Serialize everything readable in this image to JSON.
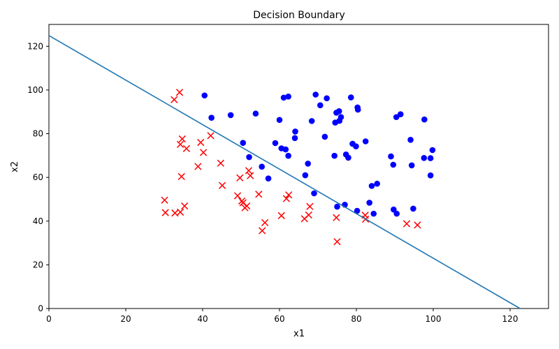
{
  "chart_data": {
    "type": "scatter",
    "title": "Decision Boundary",
    "xlabel": "x1",
    "ylabel": "x2",
    "xlim": [
      0,
      130
    ],
    "ylim": [
      0,
      130
    ],
    "xticks": [
      0,
      20,
      40,
      60,
      80,
      100,
      120
    ],
    "yticks": [
      0,
      20,
      40,
      60,
      80,
      100,
      120
    ],
    "grid": false,
    "series": [
      {
        "marker": "circle",
        "color": "#0000ff",
        "points": [
          [
            40.5,
            97.5
          ],
          [
            42.3,
            87.3
          ],
          [
            47.3,
            88.5
          ],
          [
            50.5,
            75.8
          ],
          [
            52.1,
            69.3
          ],
          [
            53.8,
            89.2
          ],
          [
            55.4,
            64.9
          ],
          [
            57.1,
            59.5
          ],
          [
            58.9,
            75.7
          ],
          [
            60.0,
            86.3
          ],
          [
            60.5,
            73.3
          ],
          [
            61.1,
            96.5
          ],
          [
            61.6,
            72.8
          ],
          [
            62.3,
            97.0
          ],
          [
            62.3,
            69.9
          ],
          [
            64.0,
            78.0
          ],
          [
            64.1,
            81.0
          ],
          [
            66.7,
            61.0
          ],
          [
            67.4,
            66.3
          ],
          [
            68.4,
            85.8
          ],
          [
            69.0,
            52.7
          ],
          [
            69.4,
            97.9
          ],
          [
            70.6,
            93.0
          ],
          [
            71.8,
            78.6
          ],
          [
            72.3,
            96.2
          ],
          [
            74.3,
            69.9
          ],
          [
            74.5,
            85.1
          ],
          [
            74.8,
            89.6
          ],
          [
            75.0,
            46.6
          ],
          [
            75.5,
            90.3
          ],
          [
            75.6,
            85.9
          ],
          [
            76.0,
            87.6
          ],
          [
            77.0,
            47.5
          ],
          [
            77.3,
            70.5
          ],
          [
            77.9,
            69.0
          ],
          [
            78.6,
            96.6
          ],
          [
            79.0,
            75.4
          ],
          [
            79.9,
            74.2
          ],
          [
            80.2,
            44.7
          ],
          [
            80.3,
            92.0
          ],
          [
            80.4,
            91.0
          ],
          [
            82.4,
            76.5
          ],
          [
            83.4,
            48.4
          ],
          [
            84.0,
            56.1
          ],
          [
            84.5,
            43.4
          ],
          [
            85.4,
            57.1
          ],
          [
            89.0,
            69.6
          ],
          [
            89.6,
            65.8
          ],
          [
            89.7,
            45.3
          ],
          [
            90.4,
            87.6
          ],
          [
            90.5,
            43.4
          ],
          [
            91.5,
            88.9
          ],
          [
            94.1,
            77.2
          ],
          [
            94.4,
            65.5
          ],
          [
            94.8,
            45.7
          ],
          [
            97.6,
            68.9
          ],
          [
            97.7,
            86.5
          ],
          [
            99.3,
            68.8
          ],
          [
            99.3,
            60.9
          ],
          [
            99.8,
            72.5
          ]
        ]
      },
      {
        "marker": "x",
        "color": "#ff0000",
        "points": [
          [
            30.1,
            49.6
          ],
          [
            30.3,
            43.9
          ],
          [
            32.6,
            95.6
          ],
          [
            32.8,
            43.7
          ],
          [
            34.0,
            98.9
          ],
          [
            34.2,
            44.1
          ],
          [
            34.2,
            75.1
          ],
          [
            34.5,
            60.4
          ],
          [
            34.7,
            77.6
          ],
          [
            35.3,
            46.9
          ],
          [
            35.8,
            73.2
          ],
          [
            38.8,
            65.0
          ],
          [
            39.5,
            76.0
          ],
          [
            40.2,
            71.4
          ],
          [
            42.1,
            79.1
          ],
          [
            44.7,
            66.5
          ],
          [
            45.1,
            56.3
          ],
          [
            49.1,
            51.6
          ],
          [
            49.7,
            59.8
          ],
          [
            50.2,
            49.2
          ],
          [
            50.5,
            48.4
          ],
          [
            51.0,
            46.1
          ],
          [
            51.5,
            46.9
          ],
          [
            52.0,
            63.1
          ],
          [
            52.4,
            60.8
          ],
          [
            54.6,
            52.3
          ],
          [
            55.5,
            35.6
          ],
          [
            56.2,
            39.3
          ],
          [
            60.5,
            42.5
          ],
          [
            61.8,
            50.3
          ],
          [
            62.4,
            52.0
          ],
          [
            66.5,
            41.1
          ],
          [
            67.6,
            42.8
          ],
          [
            67.9,
            46.7
          ],
          [
            74.8,
            41.6
          ],
          [
            75.0,
            30.6
          ],
          [
            82.3,
            42.7
          ],
          [
            82.4,
            40.9
          ],
          [
            93.1,
            38.8
          ],
          [
            95.9,
            38.2
          ]
        ]
      }
    ],
    "boundary_line": {
      "color": "#1f77b4",
      "points": [
        [
          0,
          124.9
        ],
        [
          122.6,
          0
        ]
      ]
    }
  }
}
